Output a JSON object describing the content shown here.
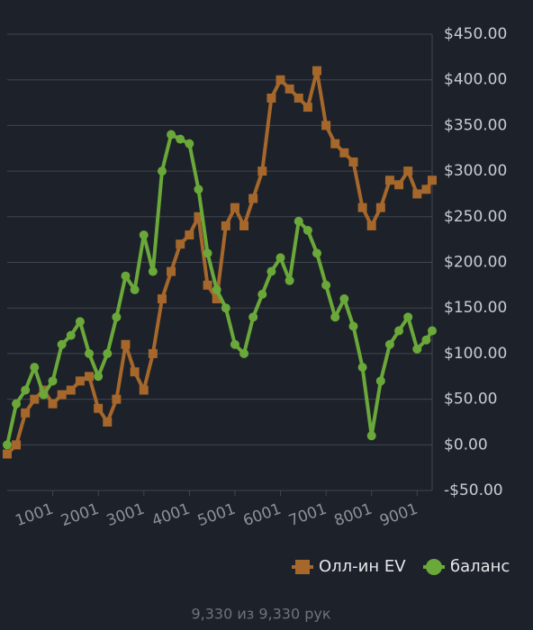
{
  "chart_data": {
    "type": "line",
    "x": [
      1,
      200,
      400,
      600,
      800,
      1000,
      1200,
      1400,
      1600,
      1800,
      2000,
      2200,
      2400,
      2600,
      2800,
      3000,
      3200,
      3400,
      3600,
      3800,
      4000,
      4200,
      4400,
      4600,
      4800,
      5000,
      5200,
      5400,
      5600,
      5800,
      6000,
      6200,
      6400,
      6600,
      6800,
      7000,
      7200,
      7400,
      7600,
      7800,
      8000,
      8200,
      8400,
      8600,
      8800,
      9000,
      9200,
      9330
    ],
    "series": [
      {
        "name": "Олл-ин EV",
        "color": "#a5672b",
        "marker": "square",
        "values": [
          -10,
          0,
          35,
          50,
          60,
          45,
          55,
          60,
          70,
          75,
          40,
          25,
          50,
          110,
          80,
          60,
          100,
          160,
          190,
          220,
          230,
          250,
          175,
          160,
          240,
          260,
          240,
          270,
          300,
          380,
          400,
          390,
          380,
          370,
          410,
          350,
          330,
          320,
          310,
          260,
          240,
          260,
          290,
          285,
          300,
          275,
          280,
          290
        ]
      },
      {
        "name": "баланс",
        "color": "#6aa83a",
        "marker": "circle",
        "values": [
          0,
          45,
          60,
          85,
          55,
          70,
          110,
          120,
          135,
          100,
          75,
          100,
          140,
          185,
          170,
          230,
          190,
          300,
          340,
          335,
          330,
          280,
          210,
          170,
          150,
          110,
          100,
          140,
          165,
          190,
          205,
          180,
          245,
          235,
          210,
          175,
          140,
          160,
          130,
          85,
          10,
          70,
          110,
          125,
          140,
          105,
          115,
          125
        ]
      }
    ],
    "xlim": [
      1,
      9330
    ],
    "xticks": [
      1001,
      2001,
      3001,
      4001,
      5001,
      6001,
      7001,
      8001,
      9001
    ],
    "ylim": [
      -50,
      450
    ],
    "yticks": [
      {
        "value": -50,
        "label": "-$50.00"
      },
      {
        "value": 0,
        "label": "$0.00"
      },
      {
        "value": 50,
        "label": "$50.00"
      },
      {
        "value": 100,
        "label": "$100.00"
      },
      {
        "value": 150,
        "label": "$150.00"
      },
      {
        "value": 200,
        "label": "$200.00"
      },
      {
        "value": 250,
        "label": "$250.00"
      },
      {
        "value": 300,
        "label": "$300.00"
      },
      {
        "value": 350,
        "label": "$350.00"
      },
      {
        "value": 400,
        "label": "$400.00"
      },
      {
        "value": 450,
        "label": "$450.00"
      }
    ],
    "grid": true,
    "footer": "9,330 из 9,330 рук"
  }
}
